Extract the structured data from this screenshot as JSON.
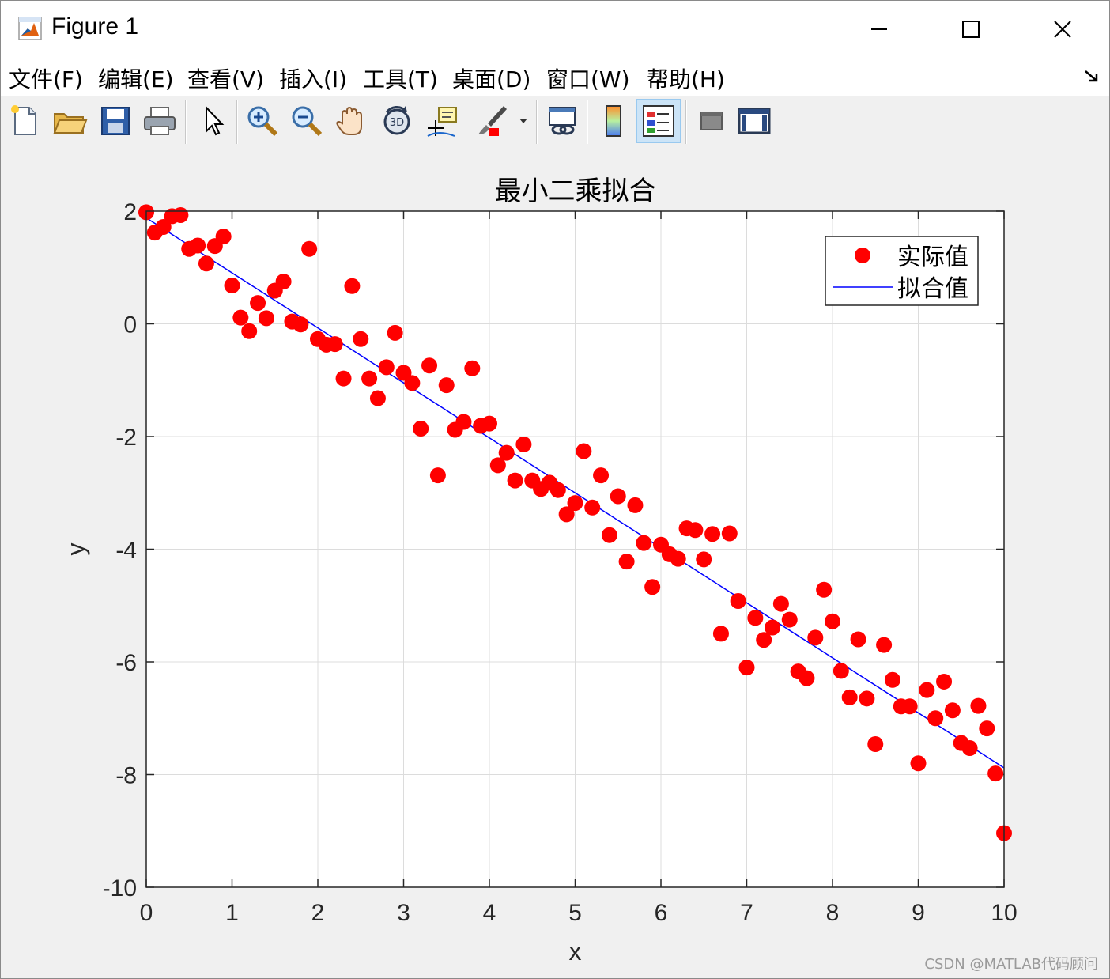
{
  "window": {
    "title": "Figure 1",
    "minimize_label": "—",
    "maximize_label": "☐",
    "close_label": "✕"
  },
  "menubar": {
    "items": [
      {
        "label": "文件(F)"
      },
      {
        "label": "编辑(E)"
      },
      {
        "label": "查看(V)"
      },
      {
        "label": "插入(I)"
      },
      {
        "label": "工具(T)"
      },
      {
        "label": "桌面(D)"
      },
      {
        "label": "窗口(W)"
      },
      {
        "label": "帮助(H)"
      }
    ],
    "dock_icon": "dock-arrow-icon"
  },
  "toolbar": {
    "buttons": [
      {
        "icon": "new-figure-icon"
      },
      {
        "icon": "open-folder-icon"
      },
      {
        "icon": "save-icon"
      },
      {
        "icon": "print-icon"
      },
      {
        "icon": "pointer-icon"
      },
      {
        "icon": "zoom-in-icon"
      },
      {
        "icon": "zoom-out-icon"
      },
      {
        "icon": "pan-hand-icon"
      },
      {
        "icon": "rotate-3d-icon"
      },
      {
        "icon": "data-cursor-icon"
      },
      {
        "icon": "brush-icon"
      },
      {
        "icon": "link-plot-icon"
      },
      {
        "icon": "colorbar-icon"
      },
      {
        "icon": "legend-icon"
      },
      {
        "icon": "hide-plot-tools-icon"
      },
      {
        "icon": "show-plot-tools-icon"
      }
    ],
    "pressed_button": "legend-icon"
  },
  "watermark": "CSDN @MATLAB代码顾问",
  "colors": {
    "marker": "#ff0000",
    "fit_line": "#0000ff",
    "axes_bg": "#ffffff",
    "figure_bg": "#f0f0f0",
    "grid": "#dcdcdc"
  },
  "chart_data": {
    "type": "scatter",
    "title": "最小二乘拟合",
    "xlabel": "x",
    "ylabel": "y",
    "xlim": [
      0,
      10
    ],
    "ylim": [
      -10,
      2
    ],
    "xticks": [
      0,
      1,
      2,
      3,
      4,
      5,
      6,
      7,
      8,
      9,
      10
    ],
    "yticks": [
      -10,
      -8,
      -6,
      -4,
      -2,
      0,
      2
    ],
    "grid": true,
    "legend_position": "top-right",
    "series": [
      {
        "name": "实际值",
        "style": "markers",
        "color": "#ff0000",
        "x": [
          0,
          0.1,
          0.2,
          0.3,
          0.4,
          0.5,
          0.6,
          0.7,
          0.8,
          0.9,
          1.0,
          1.1,
          1.2,
          1.3,
          1.4,
          1.5,
          1.6,
          1.7,
          1.8,
          1.9,
          2.0,
          2.1,
          2.2,
          2.3,
          2.4,
          2.5,
          2.6,
          2.7,
          2.8,
          2.9,
          3.0,
          3.1,
          3.2,
          3.3,
          3.4,
          3.5,
          3.6,
          3.7,
          3.8,
          3.9,
          4.0,
          4.1,
          4.2,
          4.3,
          4.4,
          4.5,
          4.6,
          4.7,
          4.8,
          4.9,
          5.0,
          5.1,
          5.2,
          5.3,
          5.4,
          5.5,
          5.6,
          5.7,
          5.8,
          5.9,
          6.0,
          6.1,
          6.2,
          6.3,
          6.4,
          6.5,
          6.6,
          6.7,
          6.8,
          6.9,
          7.0,
          7.1,
          7.2,
          7.3,
          7.4,
          7.5,
          7.6,
          7.7,
          7.8,
          7.9,
          8.0,
          8.1,
          8.2,
          8.3,
          8.4,
          8.5,
          8.6,
          8.7,
          8.8,
          8.9,
          9.0,
          9.1,
          9.2,
          9.3,
          9.4,
          9.5,
          9.6,
          9.7,
          9.8,
          9.9,
          10.0
        ],
        "y": [
          1.98,
          1.62,
          1.72,
          1.91,
          1.93,
          1.33,
          1.39,
          1.07,
          1.38,
          1.55,
          0.68,
          0.11,
          -0.13,
          0.37,
          0.1,
          0.59,
          0.75,
          0.04,
          -0.01,
          1.33,
          -0.27,
          -0.37,
          -0.36,
          -0.97,
          0.67,
          -0.27,
          -0.97,
          -1.32,
          -0.77,
          -0.16,
          -0.87,
          -1.05,
          -1.86,
          -0.74,
          -2.69,
          -1.09,
          -1.88,
          -1.74,
          -0.79,
          -1.81,
          -1.77,
          -2.51,
          -2.29,
          -2.78,
          -2.14,
          -2.78,
          -2.93,
          -2.82,
          -2.95,
          -3.38,
          -3.18,
          -2.26,
          -3.26,
          -2.69,
          -3.75,
          -3.06,
          -4.22,
          -3.22,
          -3.89,
          -4.67,
          -3.92,
          -4.09,
          -4.17,
          -3.63,
          -3.66,
          -4.18,
          -3.73,
          -5.5,
          -3.72,
          -4.92,
          -6.1,
          -5.22,
          -5.61,
          -5.39,
          -4.97,
          -5.25,
          -6.17,
          -6.29,
          -5.57,
          -4.72,
          -5.28,
          -6.16,
          -6.63,
          -5.6,
          -6.65,
          -7.46,
          -5.7,
          -6.32,
          -6.79,
          -6.79,
          -7.8,
          -6.5,
          -7.0,
          -6.35,
          -6.86,
          -7.44,
          -7.53,
          -6.78,
          -7.18,
          -7.98,
          -9.04
        ]
      },
      {
        "name": "拟合值",
        "style": "line",
        "color": "#0000ff",
        "x": [
          0,
          10
        ],
        "y": [
          1.88,
          -7.88
        ]
      }
    ]
  }
}
